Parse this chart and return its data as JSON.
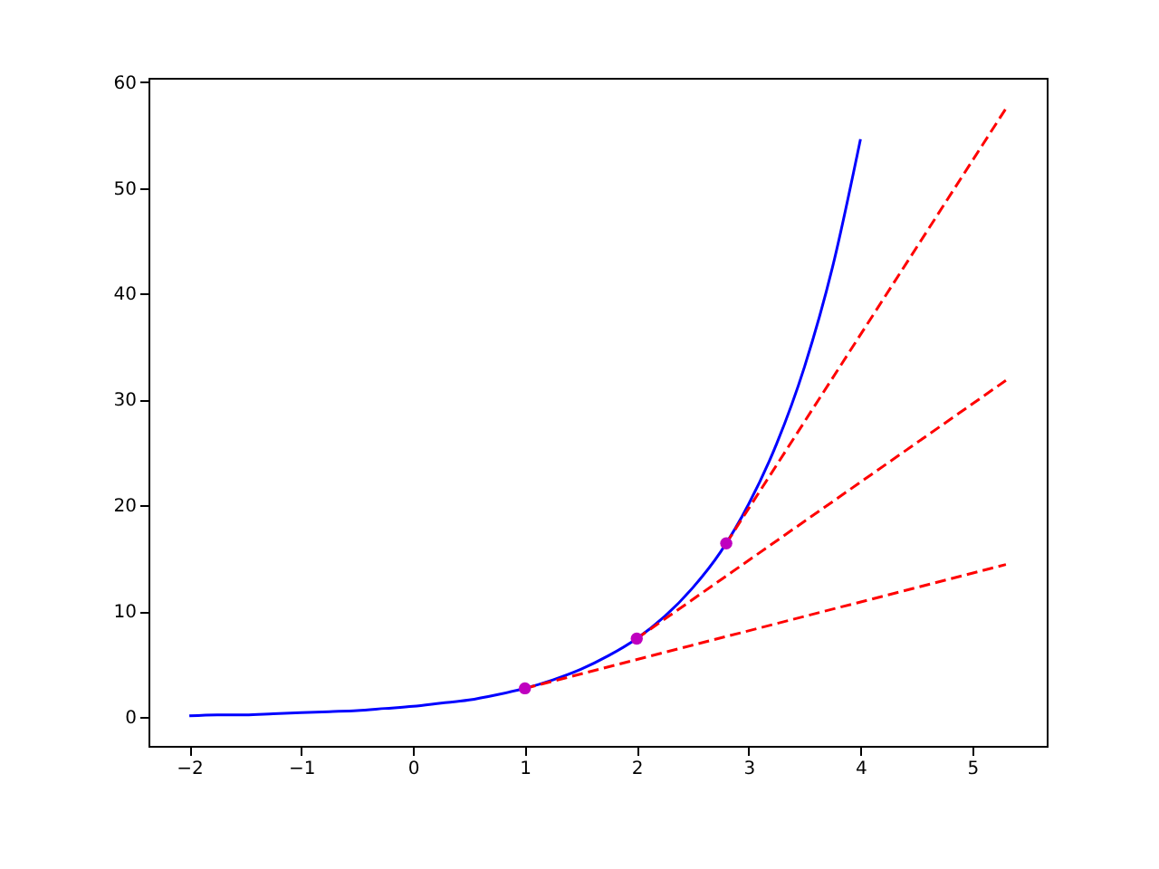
{
  "chart_data": {
    "type": "line",
    "xlim": [
      -2.365,
      5.665
    ],
    "ylim": [
      -2.74,
      60.4
    ],
    "xticks": [
      {
        "value": -2,
        "label": "−2"
      },
      {
        "value": -1,
        "label": "−1"
      },
      0,
      1,
      2,
      3,
      4,
      5
    ],
    "yticks": [
      0,
      10,
      20,
      30,
      40,
      50,
      60
    ],
    "grid": false,
    "series": [
      {
        "color": "#0000ff",
        "line_style": "solid",
        "x": [
          -2,
          -1.75,
          -1.5,
          -1.25,
          -1,
          -0.75,
          -0.5,
          -0.25,
          0,
          0.25,
          0.5,
          0.75,
          1,
          1.25,
          1.5,
          1.75,
          2,
          2.25,
          2.5,
          2.75,
          3,
          3.25,
          3.5,
          3.75,
          4
        ],
        "values": [
          0.1,
          0.2,
          0.2,
          0.3,
          0.4,
          0.5,
          0.6,
          0.8,
          1,
          1.3,
          1.6,
          2.1,
          2.7,
          3.5,
          4.5,
          5.8,
          7.4,
          9.5,
          12.2,
          15.6,
          20.1,
          25.8,
          33.1,
          42.5,
          54.6
        ]
      },
      {
        "type": "line",
        "color": "#ff0000",
        "line_style": "dashed",
        "x": [
          1,
          5.3
        ],
        "values": [
          2.7,
          14.4
        ]
      },
      {
        "type": "line",
        "color": "#ff0000",
        "line_style": "dashed",
        "x": [
          2,
          5.3
        ],
        "values": [
          7.4,
          31.8
        ]
      },
      {
        "type": "line",
        "color": "#ff0000",
        "line_style": "dashed",
        "x": [
          2.8,
          5.3
        ],
        "values": [
          16.4,
          57.5
        ]
      },
      {
        "type": "scatter",
        "color": "#bf00bf",
        "marker": "circle",
        "x": [
          1,
          2,
          2.8
        ],
        "values": [
          2.7,
          7.4,
          16.4
        ]
      }
    ]
  }
}
